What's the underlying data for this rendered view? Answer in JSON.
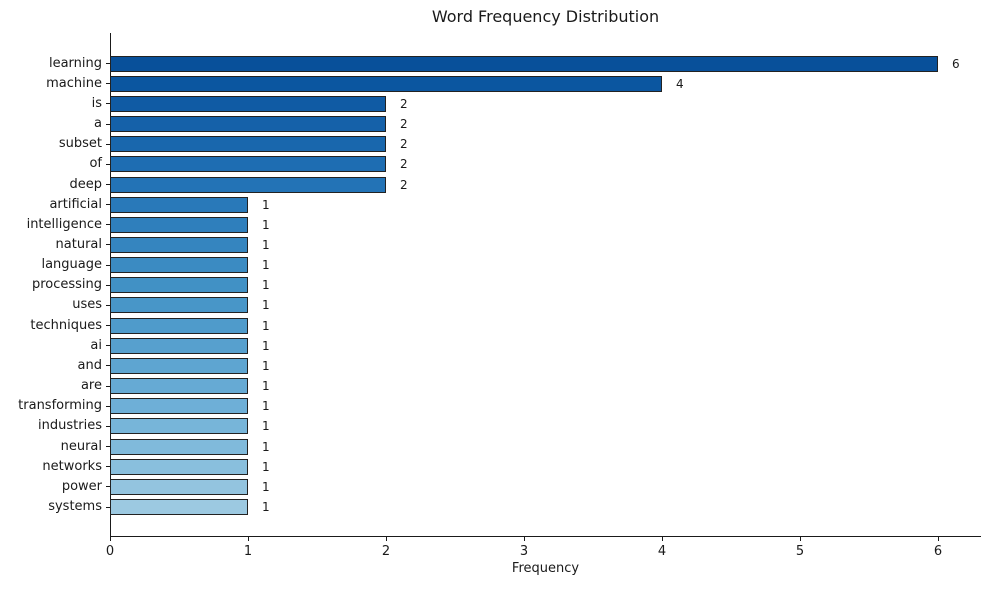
{
  "chart_data": {
    "type": "bar",
    "orientation": "horizontal",
    "title": "Word Frequency Distribution",
    "xlabel": "Frequency",
    "ylabel": "",
    "categories": [
      "learning",
      "machine",
      "is",
      "a",
      "subset",
      "of",
      "deep",
      "artificial",
      "intelligence",
      "natural",
      "language",
      "processing",
      "uses",
      "techniques",
      "ai",
      "and",
      "are",
      "transforming",
      "industries",
      "neural",
      "networks",
      "power",
      "systems"
    ],
    "values": [
      6,
      4,
      2,
      2,
      2,
      2,
      2,
      1,
      1,
      1,
      1,
      1,
      1,
      1,
      1,
      1,
      1,
      1,
      1,
      1,
      1,
      1,
      1
    ],
    "x_ticks": [
      0,
      1,
      2,
      3,
      4,
      5,
      6
    ],
    "xlim": [
      0,
      6.31
    ],
    "grid": false,
    "legend": "none",
    "colors": {
      "bar_gradient": [
        "#08509a",
        "#0b56a0",
        "#105ba4",
        "#1561a9",
        "#1967ad",
        "#1e6db2",
        "#2373b6",
        "#2979b9",
        "#2f7fbc",
        "#3585bf",
        "#3b8bc2",
        "#4191c5",
        "#4896c8",
        "#4f9bcb",
        "#57a0ce",
        "#5ea5d1",
        "#66aad4",
        "#6eafd7",
        "#77b5d9",
        "#80badb",
        "#89bfdd",
        "#93c4df",
        "#9cc9e1"
      ],
      "bar_edge": "#222222",
      "axis": "#1a1a1a",
      "text": "#1a1a1a",
      "background": "#ffffff"
    }
  }
}
